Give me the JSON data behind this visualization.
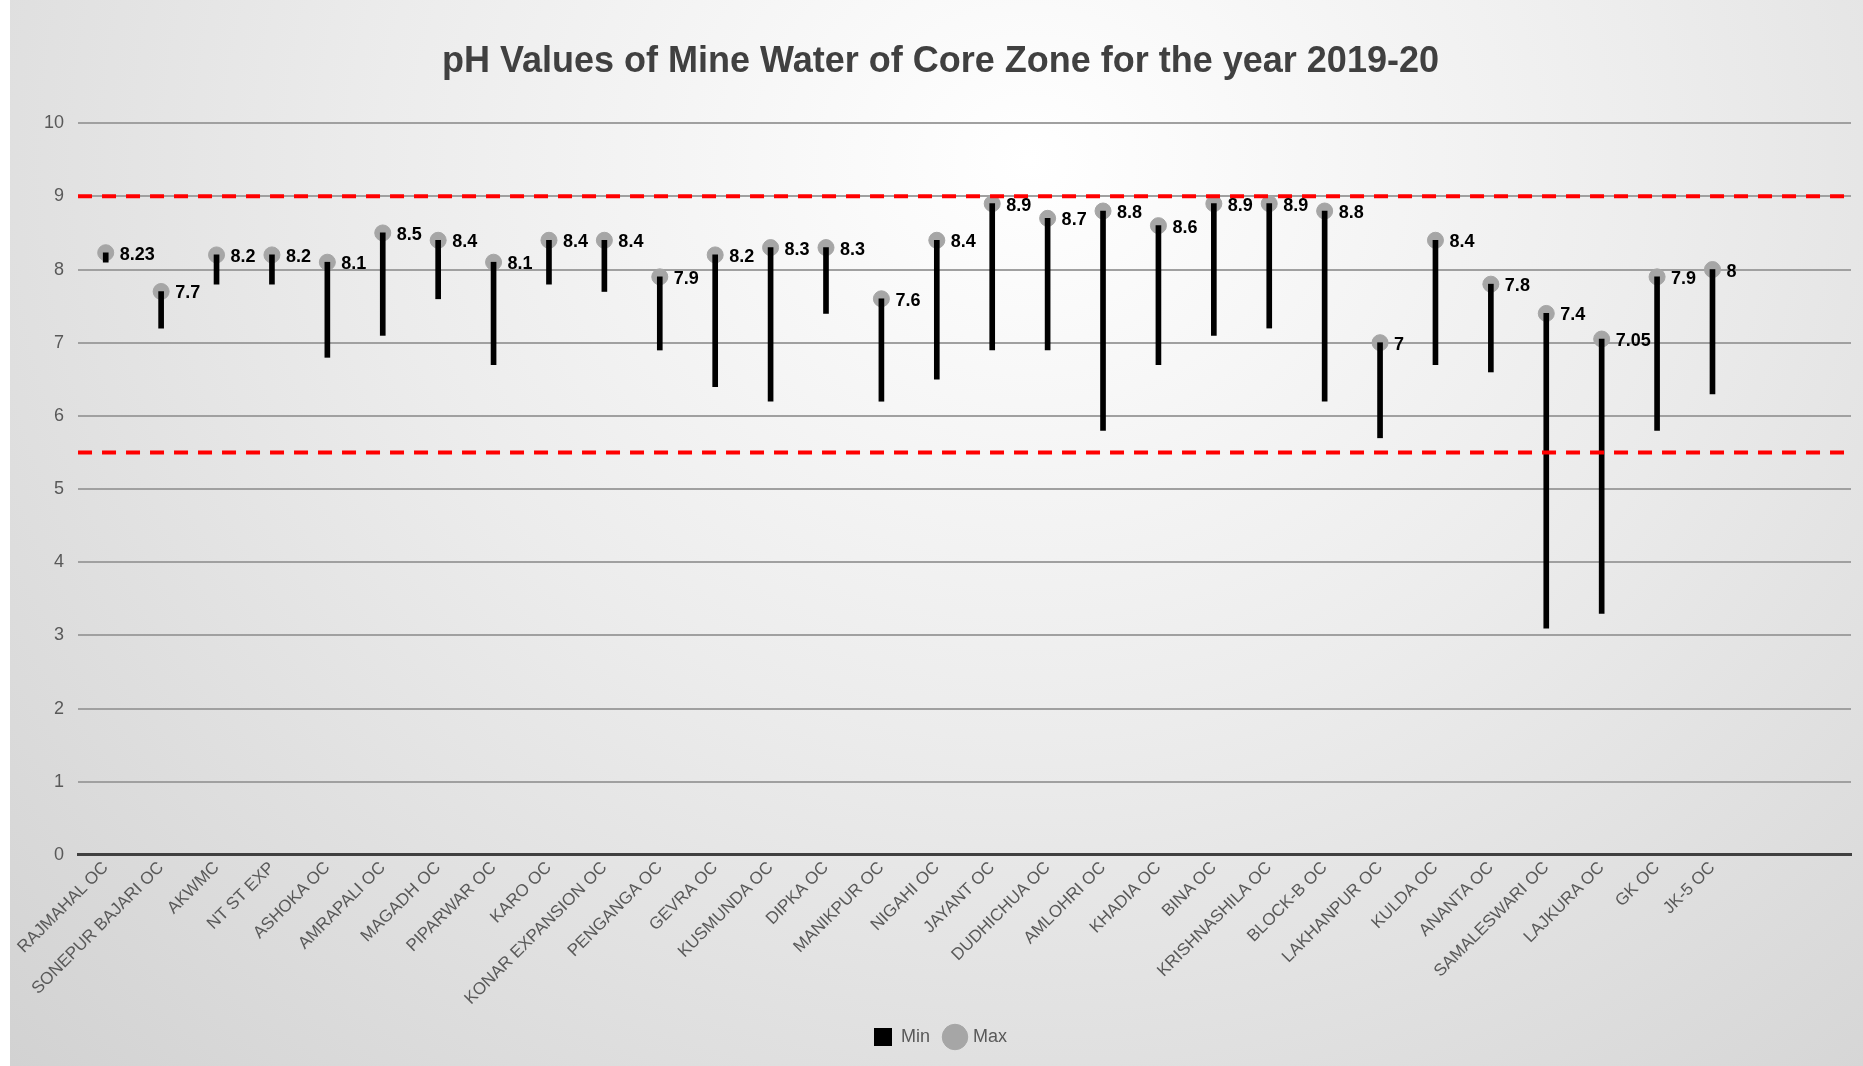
{
  "chart_data": {
    "type": "bar",
    "title": "pH Values of Mine Water of Core Zone for the year 2019-20",
    "categories": [
      "RAJMAHAL OC",
      "SONEPUR BAJARI OC",
      "AKWMC",
      "NT ST EXP",
      "ASHOKA OC",
      "AMRAPALI OC",
      "MAGADH OC",
      "PIPARWAR OC",
      "KARO OC",
      "KONAR EXPANSION OC",
      "PENGANGA OC",
      "GEVRA OC",
      "KUSMUNDA OC",
      "DIPKA OC",
      "MANIKPUR OC",
      "NIGAHI OC",
      "JAYANT OC",
      "DUDHICHUA OC",
      "AMLOHRI OC",
      "KHADIA OC",
      "BINA OC",
      "KRISHNASHILA OC",
      "BLOCK-B OC",
      "LAKHANPUR OC",
      "KULDA OC",
      "ANANTA OC",
      "SAMALESWARI OC",
      "LAJKURA OC",
      "GK OC",
      "JK-5 OC",
      null,
      null
    ],
    "series": [
      {
        "name": "Min",
        "color": "#000000",
        "base": [
          8.1,
          7.2,
          7.8,
          7.8,
          6.8,
          7.1,
          7.6,
          6.7,
          7.8,
          7.7,
          6.9,
          6.4,
          6.2,
          7.4,
          6.2,
          6.5,
          6.9,
          6.9,
          5.8,
          6.7,
          7.1,
          7.2,
          6.2,
          5.7,
          6.7,
          6.6,
          3.1,
          3.3,
          5.8,
          6.3,
          null,
          null
        ],
        "values": [
          0.13,
          0.5,
          0.4,
          0.4,
          1.3,
          1.4,
          0.8,
          1.4,
          0.6,
          0.7,
          1.0,
          1.8,
          2.1,
          0.9,
          1.4,
          1.9,
          2.0,
          1.8,
          3.0,
          1.9,
          1.8,
          1.7,
          2.6,
          1.3,
          1.7,
          1.2,
          4.3,
          3.75,
          2.1,
          1.7,
          null,
          null
        ]
      },
      {
        "name": "Max",
        "type": "scatter",
        "color": "#a6a6a6",
        "marker": "circle",
        "values": [
          8.23,
          7.7,
          8.2,
          8.2,
          8.1,
          8.5,
          8.4,
          8.1,
          8.4,
          8.4,
          7.9,
          8.2,
          8.3,
          8.3,
          7.6,
          8.4,
          8.9,
          8.7,
          8.8,
          8.6,
          8.9,
          8.9,
          8.8,
          7,
          8.4,
          7.8,
          7.4,
          7.05,
          7.9,
          8,
          null,
          null
        ],
        "value_labels": [
          "8.23",
          "7.7",
          "8.2",
          "8.2",
          "8.1",
          "8.5",
          "8.4",
          "8.1",
          "8.4",
          "8.4",
          "7.9",
          "8.2",
          "8.3",
          "8.3",
          "7.6",
          "8.4",
          "8.9",
          "8.7",
          "8.8",
          "8.6",
          "8.9",
          "8.9",
          "8.8",
          "7",
          "8.4",
          "7.8",
          "7.4",
          "7.05",
          "7.9",
          "8",
          null,
          null
        ]
      }
    ],
    "ylim": [
      0,
      10
    ],
    "yticks": [
      0,
      1,
      2,
      3,
      4,
      5,
      6,
      7,
      8,
      9,
      10
    ],
    "grid": "y",
    "legend": "bottom",
    "ref_lines": [
      {
        "axis": "y",
        "value": 9,
        "color": "#ff0000",
        "line_style": "dashed"
      },
      {
        "axis": "y",
        "value": 5.5,
        "color": "#ff0000",
        "line_style": "dashed"
      }
    ]
  }
}
